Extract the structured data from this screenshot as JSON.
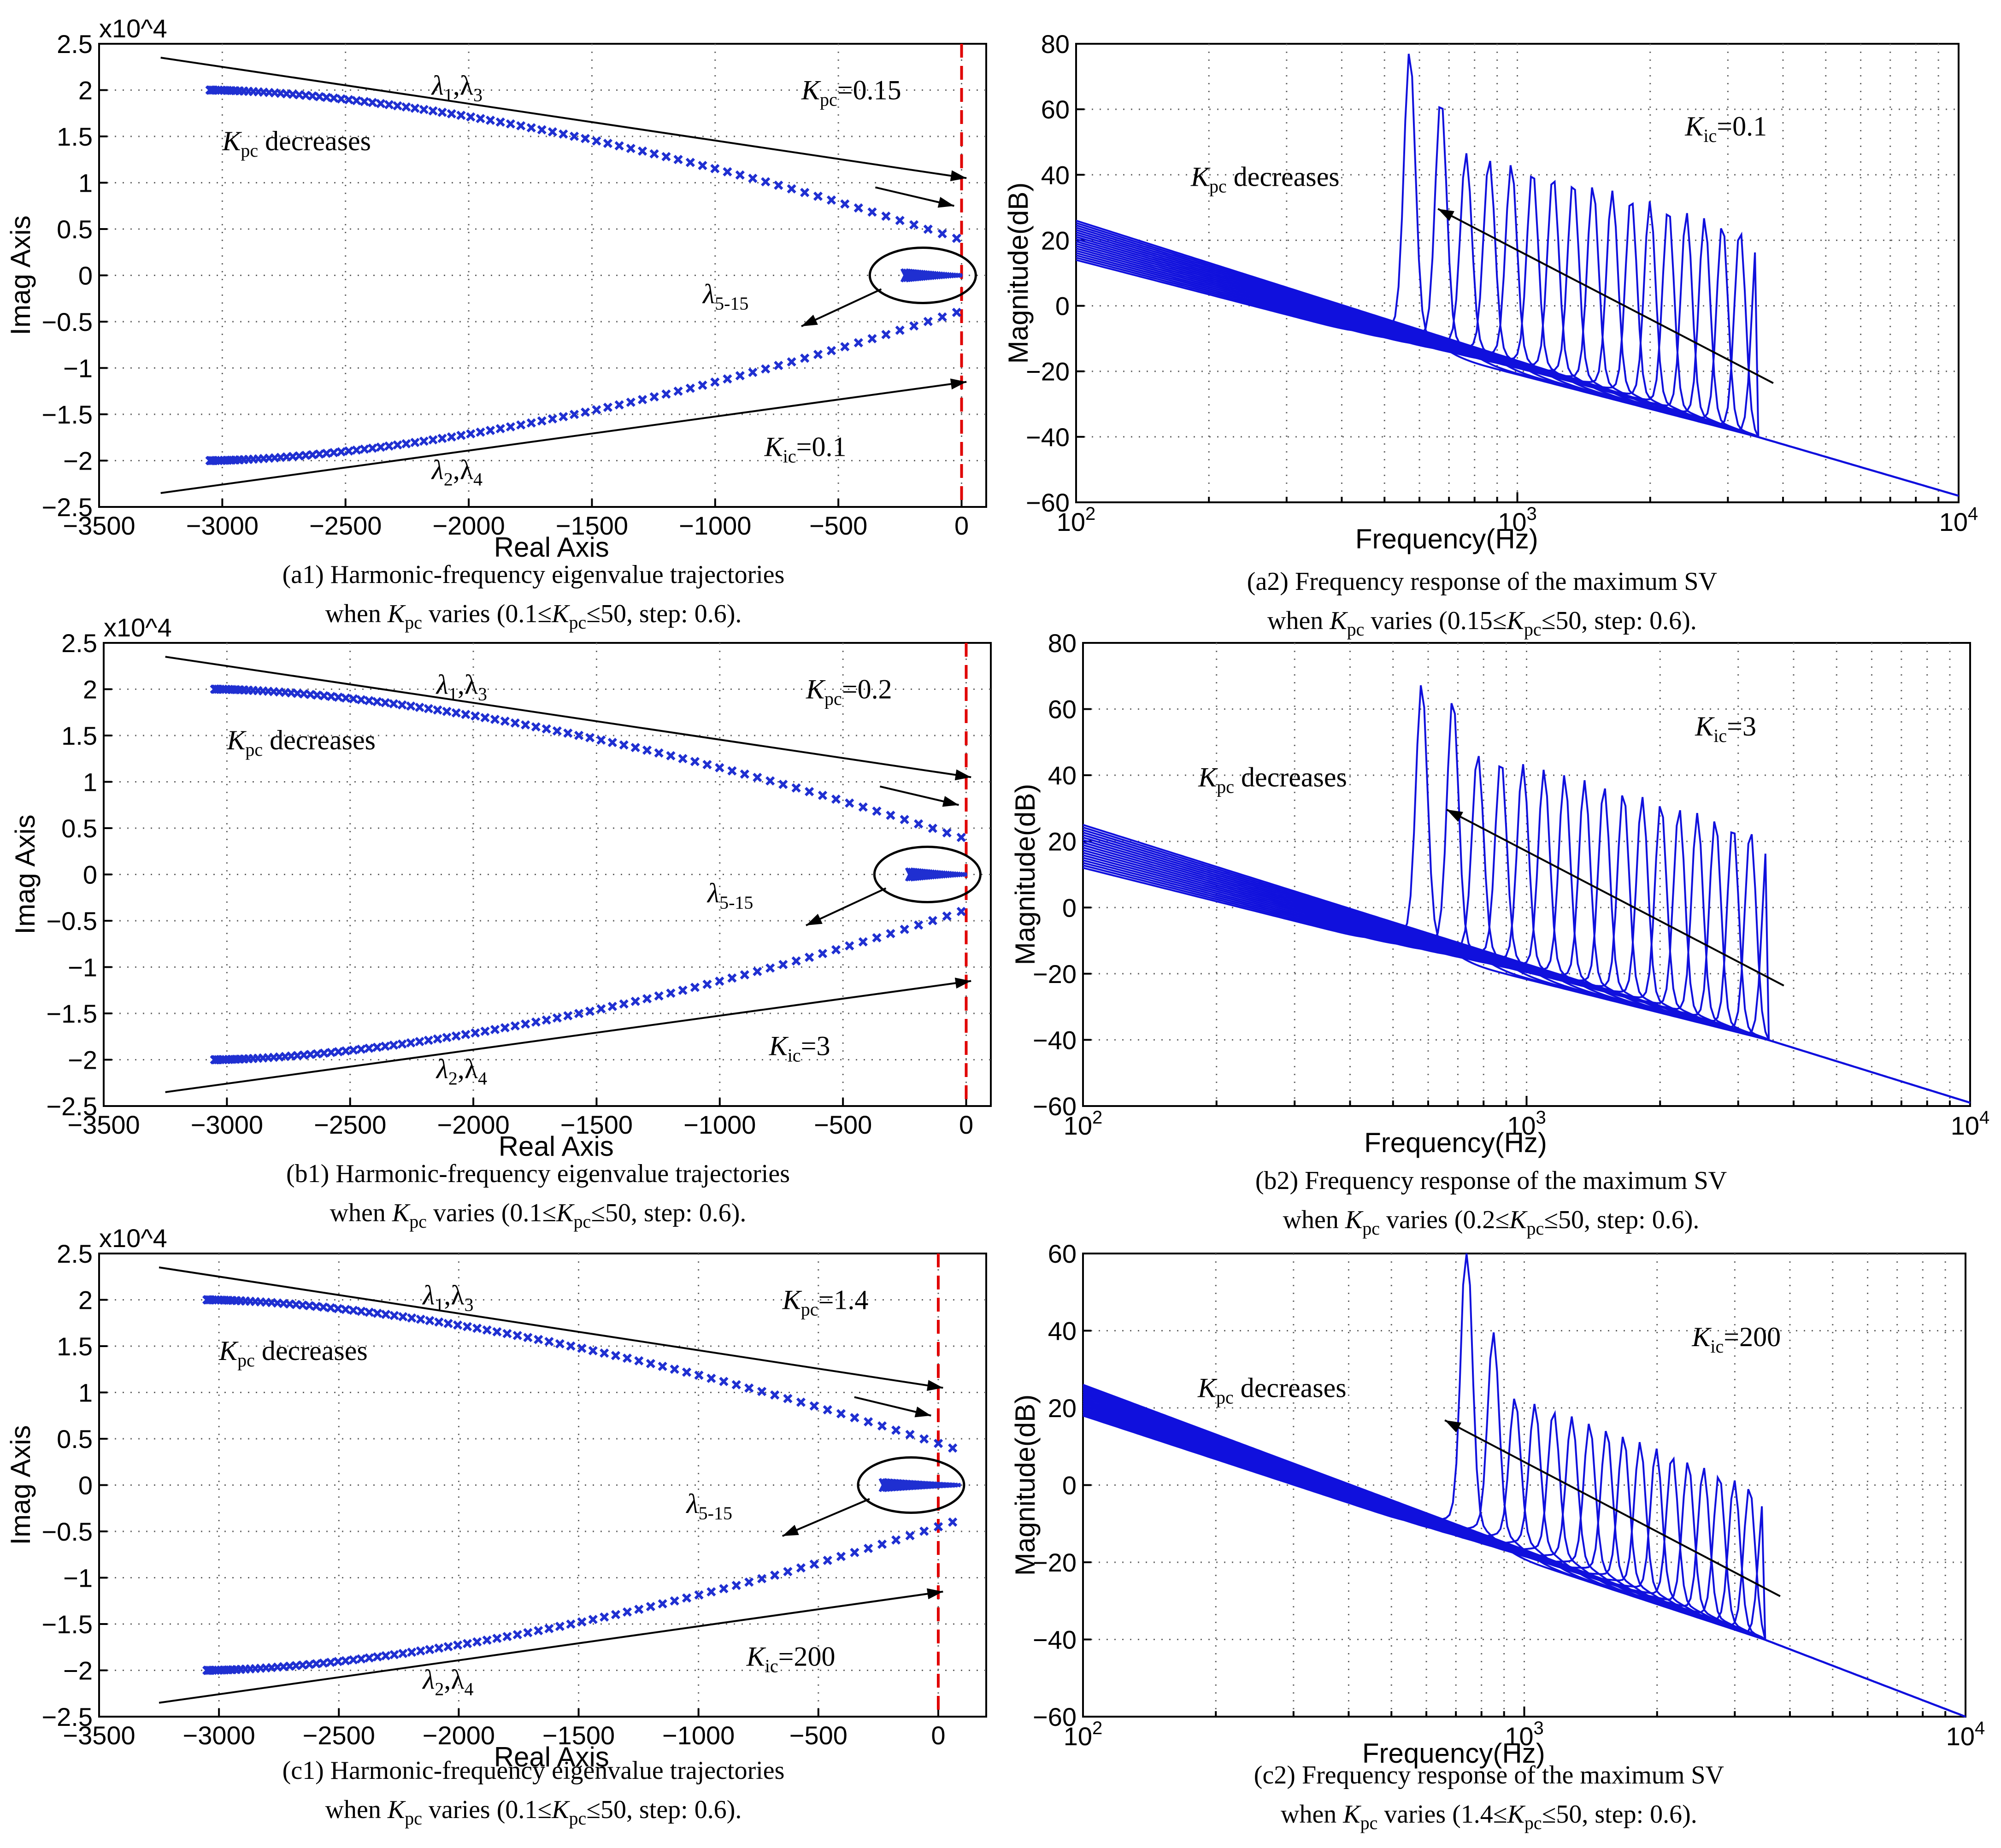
{
  "colors": {
    "eigen": "#1f2fd1",
    "bode": "#1010dd",
    "stability_line": "#e00000",
    "axes": "#000000"
  },
  "chart_data": [
    {
      "id": "a1",
      "type": "scatter",
      "title": "",
      "xlabel": "Real Axis",
      "ylabel": "Imag Axis",
      "y_exponent": "x10^4",
      "xlim": [
        -3500,
        100
      ],
      "ylim": [
        -2.5,
        2.5
      ],
      "x_ticks": [
        "−3500",
        "−3000",
        "−2500",
        "−2000",
        "−1500",
        "−1000",
        "−500",
        "0"
      ],
      "y_ticks": [
        "2.5",
        "2",
        "1.5",
        "1",
        "0.5",
        "0",
        "−0.5",
        "−1",
        "−1.5",
        "−2",
        "−2.5"
      ],
      "series": [
        {
          "name": "λ1,λ3",
          "x_from": -3050,
          "x_to": -20,
          "y_from": 2.0,
          "y_to": 0.4
        },
        {
          "name": "λ2,λ4",
          "x_from": -3050,
          "x_to": -20,
          "y_from": -2.0,
          "y_to": -0.4
        },
        {
          "name": "λ5-15",
          "x_from": -230,
          "x_to": -10,
          "y": 0
        }
      ],
      "annotations": {
        "lambda13": {
          "main": "λ",
          "sub": "1",
          "sep": ",λ",
          "sub2": "3"
        },
        "lambda24": {
          "main": "λ",
          "sub": "2",
          "sep": ",λ",
          "sub2": "4"
        },
        "lambda515": {
          "main": "λ",
          "sub": "5-15"
        },
        "kpc_dec": {
          "main": "K",
          "sub": "pc",
          "rest": " decreases"
        },
        "kpc_val": {
          "main": "K",
          "sub": "pc",
          "rest": "=0.15"
        },
        "kic_val": {
          "main": "K",
          "sub": "ic",
          "rest": "=0.1"
        }
      },
      "caption_line1": "(a1) Harmonic-frequency eigenvalue trajectories",
      "caption_line2": {
        "pre": "when ",
        "k1": "K",
        "k1sub": "pc",
        "mid": " varies (0.1≤",
        "k2": "K",
        "k2sub": "pc",
        "post": "≤50, step: 0.6)."
      }
    },
    {
      "id": "a2",
      "type": "line",
      "title": "",
      "xlabel": "Frequency(Hz)",
      "ylabel": "Magnitude(dB)",
      "x_scale": "log",
      "xlim": [
        100,
        10000
      ],
      "ylim": [
        -60,
        80
      ],
      "x_ticks": [
        {
          "base": "10",
          "exp": "2"
        },
        {
          "base": "10",
          "exp": "3"
        },
        {
          "base": "10",
          "exp": "4"
        }
      ],
      "y_ticks": [
        "80",
        "60",
        "40",
        "20",
        "0",
        "−20",
        "−40",
        "−60"
      ],
      "series_summary": {
        "count": 18,
        "peak_freq_hz_first": 570,
        "peak_db_first": 72,
        "peak_db_second": 58,
        "low_freq_db_range": [
          14,
          26
        ],
        "high_freq_db": -58
      },
      "annotations": {
        "kpc_dec": {
          "main": "K",
          "sub": "pc",
          "rest": " decreases"
        },
        "kic_val": {
          "main": "K",
          "sub": "ic",
          "rest": "=0.1"
        }
      },
      "caption_line1": "(a2) Frequency response of the maximum SV",
      "caption_line2": {
        "pre": "when ",
        "k1": "K",
        "k1sub": "pc",
        "mid": " varies (0.15≤",
        "k2": "K",
        "k2sub": "pc",
        "post": "≤50, step: 0.6)."
      }
    },
    {
      "id": "b1",
      "type": "scatter",
      "title": "",
      "xlabel": "Real Axis",
      "ylabel": "Imag Axis",
      "y_exponent": "x10^4",
      "xlim": [
        -3500,
        100
      ],
      "ylim": [
        -2.5,
        2.5
      ],
      "x_ticks": [
        "−3500",
        "−3000",
        "−2500",
        "−2000",
        "−1500",
        "−1000",
        "−500",
        "0"
      ],
      "y_ticks": [
        "2.5",
        "2",
        "1.5",
        "1",
        "0.5",
        "0",
        "−0.5",
        "−1",
        "−1.5",
        "−2",
        "−2.5"
      ],
      "series": [
        {
          "name": "λ1,λ3",
          "x_from": -3050,
          "x_to": -20,
          "y_from": 2.0,
          "y_to": 0.4
        },
        {
          "name": "λ2,λ4",
          "x_from": -3050,
          "x_to": -20,
          "y_from": -2.0,
          "y_to": -0.4
        },
        {
          "name": "λ5-15",
          "x_from": -230,
          "x_to": -10,
          "y": 0
        }
      ],
      "annotations": {
        "lambda13": {
          "main": "λ",
          "sub": "1",
          "sep": ",λ",
          "sub2": "3"
        },
        "lambda24": {
          "main": "λ",
          "sub": "2",
          "sep": ",λ",
          "sub2": "4"
        },
        "lambda515": {
          "main": "λ",
          "sub": "5-15"
        },
        "kpc_dec": {
          "main": "K",
          "sub": "pc",
          "rest": " decreases"
        },
        "kpc_val": {
          "main": "K",
          "sub": "pc",
          "rest": "=0.2"
        },
        "kic_val": {
          "main": "K",
          "sub": "ic",
          "rest": "=3"
        }
      },
      "caption_line1": "(b1) Harmonic-frequency eigenvalue trajectories",
      "caption_line2": {
        "pre": "when ",
        "k1": "K",
        "k1sub": "pc",
        "mid": " varies (0.1≤",
        "k2": "K",
        "k2sub": "pc",
        "post": "≤50, step: 0.6)."
      }
    },
    {
      "id": "b2",
      "type": "line",
      "title": "",
      "xlabel": "Frequency(Hz)",
      "ylabel": "Magnitude(dB)",
      "x_scale": "log",
      "xlim": [
        100,
        10000
      ],
      "ylim": [
        -60,
        80
      ],
      "x_ticks": [
        {
          "base": "10",
          "exp": "2"
        },
        {
          "base": "10",
          "exp": "3"
        },
        {
          "base": "10",
          "exp": "4"
        }
      ],
      "y_ticks": [
        "80",
        "60",
        "40",
        "20",
        "0",
        "−20",
        "−40",
        "−60"
      ],
      "series_summary": {
        "count": 18,
        "peak_freq_hz_first": 580,
        "peak_db_first": 62,
        "peak_db_second": 58,
        "low_freq_db_range": [
          12,
          25
        ],
        "high_freq_db": -59
      },
      "annotations": {
        "kpc_dec": {
          "main": "K",
          "sub": "pc",
          "rest": " decreases"
        },
        "kic_val": {
          "main": "K",
          "sub": "ic",
          "rest": "=3"
        }
      },
      "caption_line1": "(b2) Frequency response of the maximum SV",
      "caption_line2": {
        "pre": "when ",
        "k1": "K",
        "k1sub": "pc",
        "mid": " varies (0.2≤",
        "k2": "K",
        "k2sub": "pc",
        "post": "≤50, step: 0.6)."
      }
    },
    {
      "id": "c1",
      "type": "scatter",
      "title": "",
      "xlabel": "Real Axis",
      "ylabel": "Imag Axis",
      "y_exponent": "x10^4",
      "xlim": [
        -3500,
        200
      ],
      "ylim": [
        -2.5,
        2.5
      ],
      "x_ticks": [
        "−3500",
        "−3000",
        "−2500",
        "−2000",
        "−1500",
        "−1000",
        "−500",
        "0"
      ],
      "y_ticks": [
        "2.5",
        "2",
        "1.5",
        "1",
        "0.5",
        "0",
        "−0.5",
        "−1",
        "−1.5",
        "−2",
        "−2.5"
      ],
      "series": [
        {
          "name": "λ1,λ3",
          "x_from": -3050,
          "x_to": 60,
          "y_from": 2.0,
          "y_to": 0.4
        },
        {
          "name": "λ2,λ4",
          "x_from": -3050,
          "x_to": 60,
          "y_from": -2.0,
          "y_to": -0.4
        },
        {
          "name": "λ5-15",
          "x_from": -230,
          "x_to": 80,
          "y": 0
        }
      ],
      "annotations": {
        "lambda13": {
          "main": "λ",
          "sub": "1",
          "sep": ",λ",
          "sub2": "3"
        },
        "lambda24": {
          "main": "λ",
          "sub": "2",
          "sep": ",λ",
          "sub2": "4"
        },
        "lambda515": {
          "main": "λ",
          "sub": "5-15"
        },
        "kpc_dec": {
          "main": "K",
          "sub": "pc",
          "rest": " decreases"
        },
        "kpc_val": {
          "main": "K",
          "sub": "pc",
          "rest": "=1.4"
        },
        "kic_val": {
          "main": "K",
          "sub": "ic",
          "rest": "=200"
        }
      },
      "caption_line1": "(c1) Harmonic-frequency eigenvalue trajectories",
      "caption_line2": {
        "pre": "when ",
        "k1": "K",
        "k1sub": "pc",
        "mid": " varies (0.1≤",
        "k2": "K",
        "k2sub": "pc",
        "post": "≤50, step: 0.6)."
      }
    },
    {
      "id": "c2",
      "type": "line",
      "title": "",
      "xlabel": "Frequency(Hz)",
      "ylabel": "Magnitude(dB)",
      "x_scale": "log",
      "xlim": [
        100,
        10000
      ],
      "ylim": [
        -60,
        60
      ],
      "x_ticks": [
        {
          "base": "10",
          "exp": "2"
        },
        {
          "base": "10",
          "exp": "3"
        },
        {
          "base": "10",
          "exp": "4"
        }
      ],
      "y_ticks": [
        "60",
        "40",
        "20",
        "0",
        "−20",
        "−40",
        "−60"
      ],
      "series_summary": {
        "count": 18,
        "peak_freq_hz_first": 740,
        "peak_db_first": 58,
        "peak_db_second": 34,
        "low_freq_db_range": [
          18,
          26
        ],
        "high_freq_db": -60
      },
      "annotations": {
        "kpc_dec": {
          "main": "K",
          "sub": "pc",
          "rest": " decreases"
        },
        "kic_val": {
          "main": "K",
          "sub": "ic",
          "rest": "=200"
        }
      },
      "caption_line1": "(c2) Frequency response of the maximum SV",
      "caption_line2": {
        "pre": "when ",
        "k1": "K",
        "k1sub": "pc",
        "mid": " varies (1.4≤",
        "k2": "K",
        "k2sub": "pc",
        "post": "≤50, step: 0.6)."
      }
    }
  ]
}
